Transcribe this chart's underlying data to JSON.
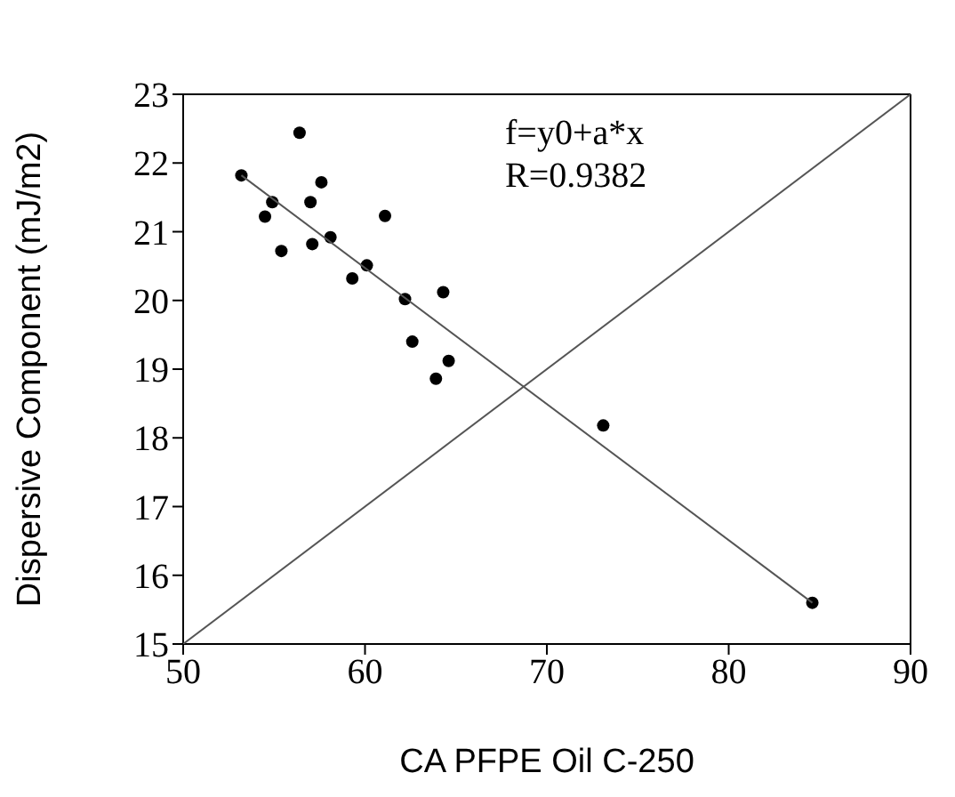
{
  "chart_data": {
    "type": "scatter",
    "xlabel": "CA PFPE Oil C-250",
    "ylabel": "Dispersive Component (mJ/m2)",
    "annotations": [
      "f=y0+a*x",
      "R=0.9382"
    ],
    "xlim": [
      50,
      90
    ],
    "xticks": [
      50,
      60,
      70,
      80,
      90
    ],
    "ylim": [
      15,
      23
    ],
    "yticks": [
      15,
      16,
      17,
      18,
      19,
      20,
      21,
      22,
      23
    ],
    "marker": "circle",
    "series": [
      {
        "color": "#000000",
        "x": [
          53.2,
          56.4,
          54.5,
          54.9,
          55.4,
          57.0,
          57.6,
          57.1,
          58.1,
          61.1,
          59.3,
          60.1,
          62.2,
          64.3,
          62.6,
          64.6,
          63.9,
          73.1,
          84.6
        ],
        "values": [
          21.82,
          22.44,
          21.22,
          21.43,
          20.72,
          21.43,
          21.72,
          20.82,
          20.92,
          21.23,
          20.32,
          20.51,
          20.02,
          20.12,
          19.4,
          19.12,
          18.86,
          18.18,
          15.6
        ]
      },
      {
        "type": "line",
        "color": "#555555",
        "marker": "none",
        "line_style": "solid",
        "x": [
          53.2,
          84.6
        ],
        "values": [
          21.82,
          15.6
        ]
      },
      {
        "type": "line",
        "color": "#555555",
        "marker": "none",
        "line_style": "solid",
        "x": [
          50,
          90
        ],
        "values": [
          15,
          23
        ]
      }
    ]
  }
}
